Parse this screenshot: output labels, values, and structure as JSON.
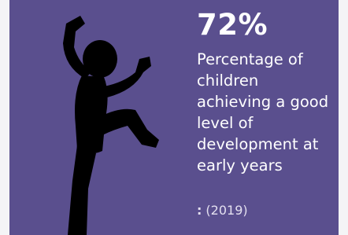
{
  "stat": {
    "value": "72%",
    "description": "Percentage of children achieving a good level of development at early years",
    "note": {
      "prefix": ":",
      "year": "(2019)"
    }
  }
}
